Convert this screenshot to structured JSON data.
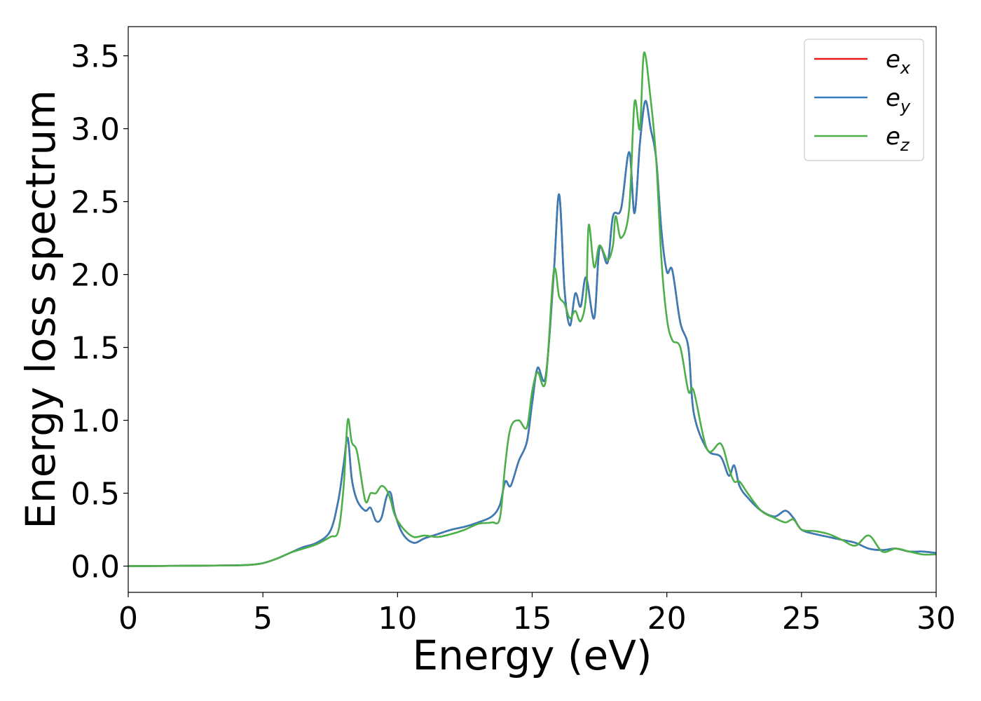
{
  "chart_data": {
    "type": "line",
    "xlabel": "Energy (eV)",
    "ylabel": "Energy loss spectrum",
    "xlim": [
      0,
      30
    ],
    "ylim": [
      -0.18,
      3.7
    ],
    "xticks": [
      0,
      5,
      10,
      15,
      20,
      25,
      30
    ],
    "xtick_labels": [
      "0",
      "5",
      "10",
      "15",
      "20",
      "25",
      "30"
    ],
    "yticks": [
      0.0,
      0.5,
      1.0,
      1.5,
      2.0,
      2.5,
      3.0,
      3.5
    ],
    "ytick_labels": [
      "0.0",
      "0.5",
      "1.0",
      "1.5",
      "2.0",
      "2.5",
      "3.0",
      "3.5"
    ],
    "grid": false,
    "legend_position": "top-right",
    "series": [
      {
        "name": "e_x",
        "legend_base": "e",
        "legend_sub": "x",
        "color": "#e41a1c",
        "x": [
          0,
          2,
          4,
          4.6,
          5,
          5.5,
          6,
          6.5,
          7,
          7.5,
          7.8,
          8.0,
          8.15,
          8.3,
          8.5,
          8.8,
          9.0,
          9.2,
          9.4,
          9.6,
          9.75,
          9.9,
          10.2,
          10.6,
          11.0,
          11.5,
          12,
          12.5,
          13,
          13.5,
          13.8,
          14.0,
          14.2,
          14.5,
          14.8,
          15.0,
          15.2,
          15.5,
          15.8,
          16.0,
          16.2,
          16.4,
          16.6,
          16.8,
          17.0,
          17.3,
          17.5,
          17.8,
          18.0,
          18.3,
          18.6,
          18.8,
          19.0,
          19.2,
          19.4,
          19.6,
          19.8,
          20.0,
          20.2,
          20.5,
          20.8,
          21.0,
          21.5,
          22.0,
          22.3,
          22.5,
          22.7,
          23,
          23.5,
          24,
          24.4,
          24.7,
          25,
          25.5,
          26,
          26.5,
          27,
          27.5,
          28,
          28.5,
          29,
          29.5,
          30
        ],
        "values": [
          0,
          0.002,
          0.005,
          0.01,
          0.02,
          0.05,
          0.09,
          0.13,
          0.16,
          0.24,
          0.45,
          0.7,
          0.88,
          0.6,
          0.45,
          0.38,
          0.4,
          0.31,
          0.33,
          0.48,
          0.5,
          0.36,
          0.22,
          0.16,
          0.19,
          0.22,
          0.25,
          0.27,
          0.3,
          0.34,
          0.42,
          0.58,
          0.55,
          0.72,
          0.85,
          1.12,
          1.36,
          1.3,
          2.0,
          2.55,
          1.9,
          1.65,
          1.87,
          1.78,
          1.98,
          1.7,
          2.18,
          2.08,
          2.4,
          2.45,
          2.84,
          2.42,
          2.9,
          3.19,
          3.0,
          2.8,
          2.3,
          2.02,
          2.03,
          1.67,
          1.5,
          1.05,
          0.8,
          0.75,
          0.62,
          0.69,
          0.55,
          0.47,
          0.38,
          0.34,
          0.38,
          0.33,
          0.25,
          0.22,
          0.2,
          0.18,
          0.16,
          0.12,
          0.11,
          0.12,
          0.1,
          0.1,
          0.09
        ]
      },
      {
        "name": "e_y",
        "legend_base": "e",
        "legend_sub": "y",
        "color": "#377eb8",
        "x": [
          0,
          2,
          4,
          4.6,
          5,
          5.5,
          6,
          6.5,
          7,
          7.5,
          7.8,
          8.0,
          8.15,
          8.3,
          8.5,
          8.8,
          9.0,
          9.2,
          9.4,
          9.6,
          9.75,
          9.9,
          10.2,
          10.6,
          11.0,
          11.5,
          12,
          12.5,
          13,
          13.5,
          13.8,
          14.0,
          14.2,
          14.5,
          14.8,
          15.0,
          15.2,
          15.5,
          15.8,
          16.0,
          16.2,
          16.4,
          16.6,
          16.8,
          17.0,
          17.3,
          17.5,
          17.8,
          18.0,
          18.3,
          18.6,
          18.8,
          19.0,
          19.2,
          19.4,
          19.6,
          19.8,
          20.0,
          20.2,
          20.5,
          20.8,
          21.0,
          21.5,
          22.0,
          22.3,
          22.5,
          22.7,
          23,
          23.5,
          24,
          24.4,
          24.7,
          25,
          25.5,
          26,
          26.5,
          27,
          27.5,
          28,
          28.5,
          29,
          29.5,
          30
        ],
        "values": [
          0,
          0.002,
          0.005,
          0.01,
          0.02,
          0.05,
          0.09,
          0.13,
          0.16,
          0.24,
          0.45,
          0.7,
          0.88,
          0.6,
          0.45,
          0.38,
          0.4,
          0.31,
          0.33,
          0.48,
          0.5,
          0.36,
          0.22,
          0.16,
          0.19,
          0.22,
          0.25,
          0.27,
          0.3,
          0.34,
          0.42,
          0.58,
          0.55,
          0.72,
          0.85,
          1.12,
          1.36,
          1.3,
          2.0,
          2.55,
          1.9,
          1.65,
          1.87,
          1.78,
          1.98,
          1.7,
          2.18,
          2.08,
          2.4,
          2.45,
          2.84,
          2.42,
          2.9,
          3.19,
          3.0,
          2.8,
          2.3,
          2.02,
          2.03,
          1.67,
          1.5,
          1.05,
          0.8,
          0.75,
          0.62,
          0.69,
          0.55,
          0.47,
          0.38,
          0.34,
          0.38,
          0.33,
          0.25,
          0.22,
          0.2,
          0.18,
          0.16,
          0.12,
          0.11,
          0.12,
          0.1,
          0.1,
          0.09
        ]
      },
      {
        "name": "e_z",
        "legend_base": "e",
        "legend_sub": "z",
        "color": "#4daf4a",
        "x": [
          0,
          2,
          4,
          4.6,
          5,
          5.5,
          6,
          6.5,
          7,
          7.5,
          7.8,
          8.0,
          8.15,
          8.3,
          8.5,
          8.8,
          9.0,
          9.2,
          9.4,
          9.6,
          9.75,
          9.9,
          10.2,
          10.6,
          11.0,
          11.5,
          12,
          12.5,
          13,
          13.5,
          13.8,
          14.0,
          14.2,
          14.5,
          14.8,
          15.0,
          15.2,
          15.5,
          15.8,
          16.0,
          16.2,
          16.4,
          16.6,
          16.8,
          17.0,
          17.1,
          17.3,
          17.5,
          17.8,
          18.0,
          18.1,
          18.3,
          18.6,
          18.8,
          19.0,
          19.15,
          19.4,
          19.6,
          19.8,
          20.0,
          20.2,
          20.5,
          20.8,
          21.0,
          21.5,
          22.0,
          22.3,
          22.5,
          22.7,
          23,
          23.5,
          24,
          24.4,
          24.7,
          25,
          25.5,
          26,
          26.5,
          27,
          27.5,
          28,
          28.5,
          29,
          29.5,
          30
        ],
        "values": [
          0,
          0.002,
          0.005,
          0.01,
          0.02,
          0.05,
          0.09,
          0.12,
          0.15,
          0.2,
          0.24,
          0.55,
          1.0,
          0.85,
          0.78,
          0.45,
          0.5,
          0.5,
          0.55,
          0.52,
          0.45,
          0.35,
          0.26,
          0.2,
          0.21,
          0.2,
          0.22,
          0.25,
          0.29,
          0.3,
          0.33,
          0.7,
          0.95,
          1.0,
          0.95,
          1.2,
          1.33,
          1.27,
          2.02,
          1.85,
          1.8,
          1.7,
          1.75,
          1.68,
          1.85,
          2.34,
          2.05,
          2.2,
          2.1,
          2.2,
          2.4,
          2.25,
          2.45,
          3.18,
          3.0,
          3.52,
          3.2,
          2.8,
          2.1,
          1.7,
          1.55,
          1.5,
          1.2,
          1.2,
          0.8,
          0.84,
          0.67,
          0.58,
          0.58,
          0.5,
          0.38,
          0.33,
          0.3,
          0.32,
          0.25,
          0.24,
          0.22,
          0.18,
          0.14,
          0.21,
          0.1,
          0.12,
          0.1,
          0.08,
          0.08
        ]
      }
    ]
  }
}
